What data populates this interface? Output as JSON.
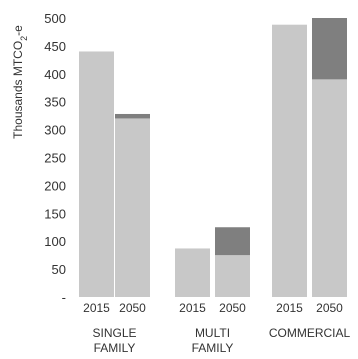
{
  "chart_data": {
    "type": "bar",
    "stacked": true,
    "ylabel": "Thousands MTCO2-e",
    "ylim": [
      0,
      500
    ],
    "yticks": [
      "-",
      "50",
      "100",
      "150",
      "200",
      "250",
      "300",
      "350",
      "400",
      "450",
      "500"
    ],
    "groups": [
      {
        "label_lines": [
          "SINGLE",
          "FAMILY"
        ],
        "bars": [
          {
            "year": "2015",
            "base": 440,
            "top": 0
          },
          {
            "year": "2050",
            "base": 320,
            "top": 8
          }
        ]
      },
      {
        "label_lines": [
          "MULTI",
          "FAMILY"
        ],
        "bars": [
          {
            "year": "2015",
            "base": 87,
            "top": 0
          },
          {
            "year": "2050",
            "base": 75,
            "top": 50
          }
        ]
      },
      {
        "label_lines": [
          "COMMERCIAL"
        ],
        "bars": [
          {
            "year": "2015",
            "base": 488,
            "top": 0
          },
          {
            "year": "2050",
            "base": 390,
            "top": 110
          }
        ]
      }
    ],
    "colors": {
      "base": "#c8c8c8",
      "top": "#7f7f7f"
    }
  }
}
